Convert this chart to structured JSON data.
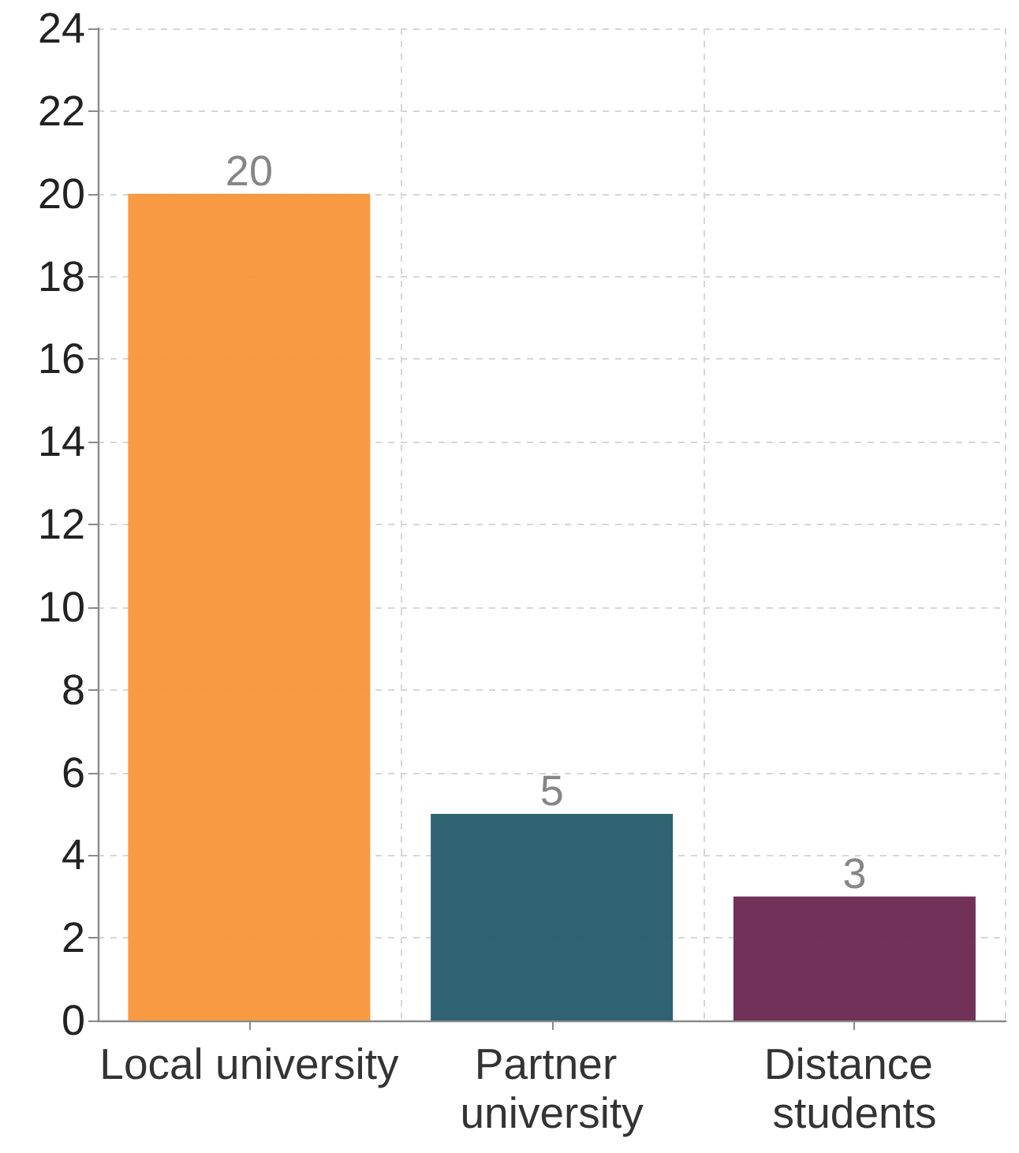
{
  "chart_data": {
    "type": "bar",
    "categories": [
      "Local university",
      "Partner university",
      "Distance students"
    ],
    "values": [
      20,
      5,
      3
    ],
    "colors": [
      "#f8953a",
      "#245b6a",
      "#69264f"
    ],
    "ylim": [
      0,
      24
    ],
    "yticks": [
      0,
      2,
      4,
      6,
      8,
      10,
      12,
      14,
      16,
      18,
      20,
      22,
      24
    ],
    "grid": true,
    "data_labels": true
  }
}
